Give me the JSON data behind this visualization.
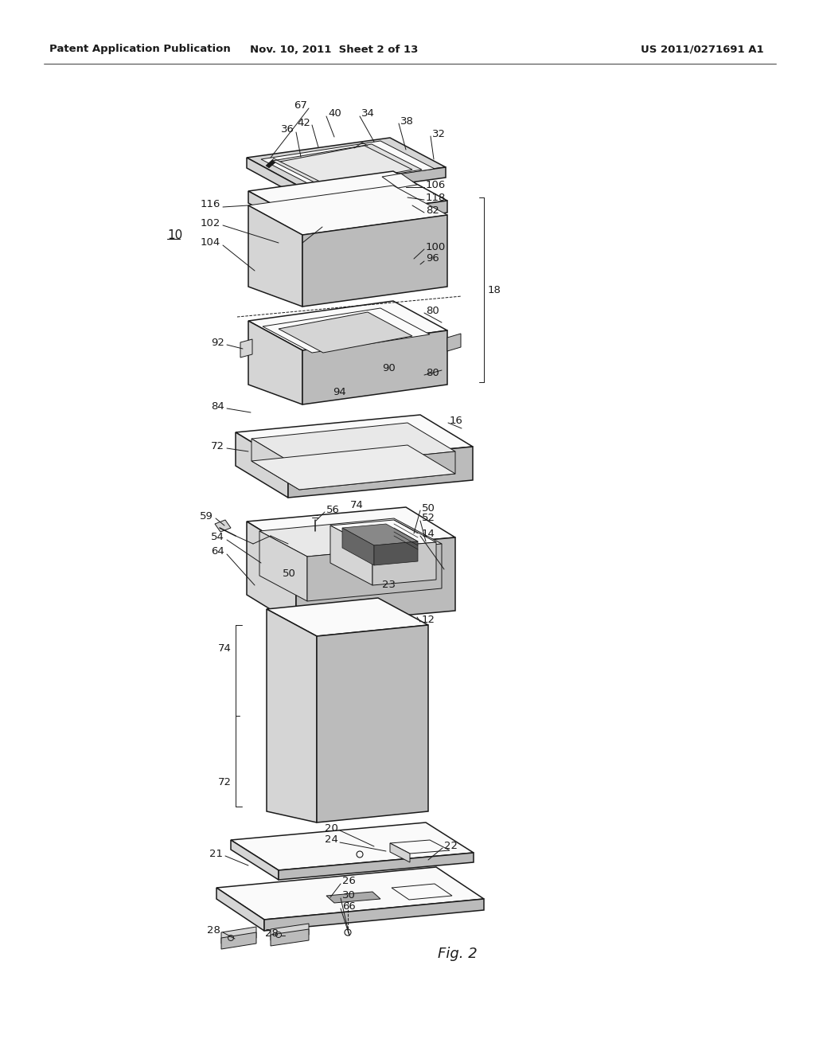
{
  "bg_color": "#ffffff",
  "header_left": "Patent Application Publication",
  "header_center": "Nov. 10, 2011  Sheet 2 of 13",
  "header_right": "US 2011/0271691 A1",
  "fig_label": "Fig. 2",
  "dc": "#1a1a1a",
  "fl": "#f2f2f2",
  "fm": "#d5d5d5",
  "fd": "#bbbbbb",
  "fw": "#fafafa",
  "lw_main": 1.1,
  "lw_thin": 0.7,
  "fs": 9.5
}
